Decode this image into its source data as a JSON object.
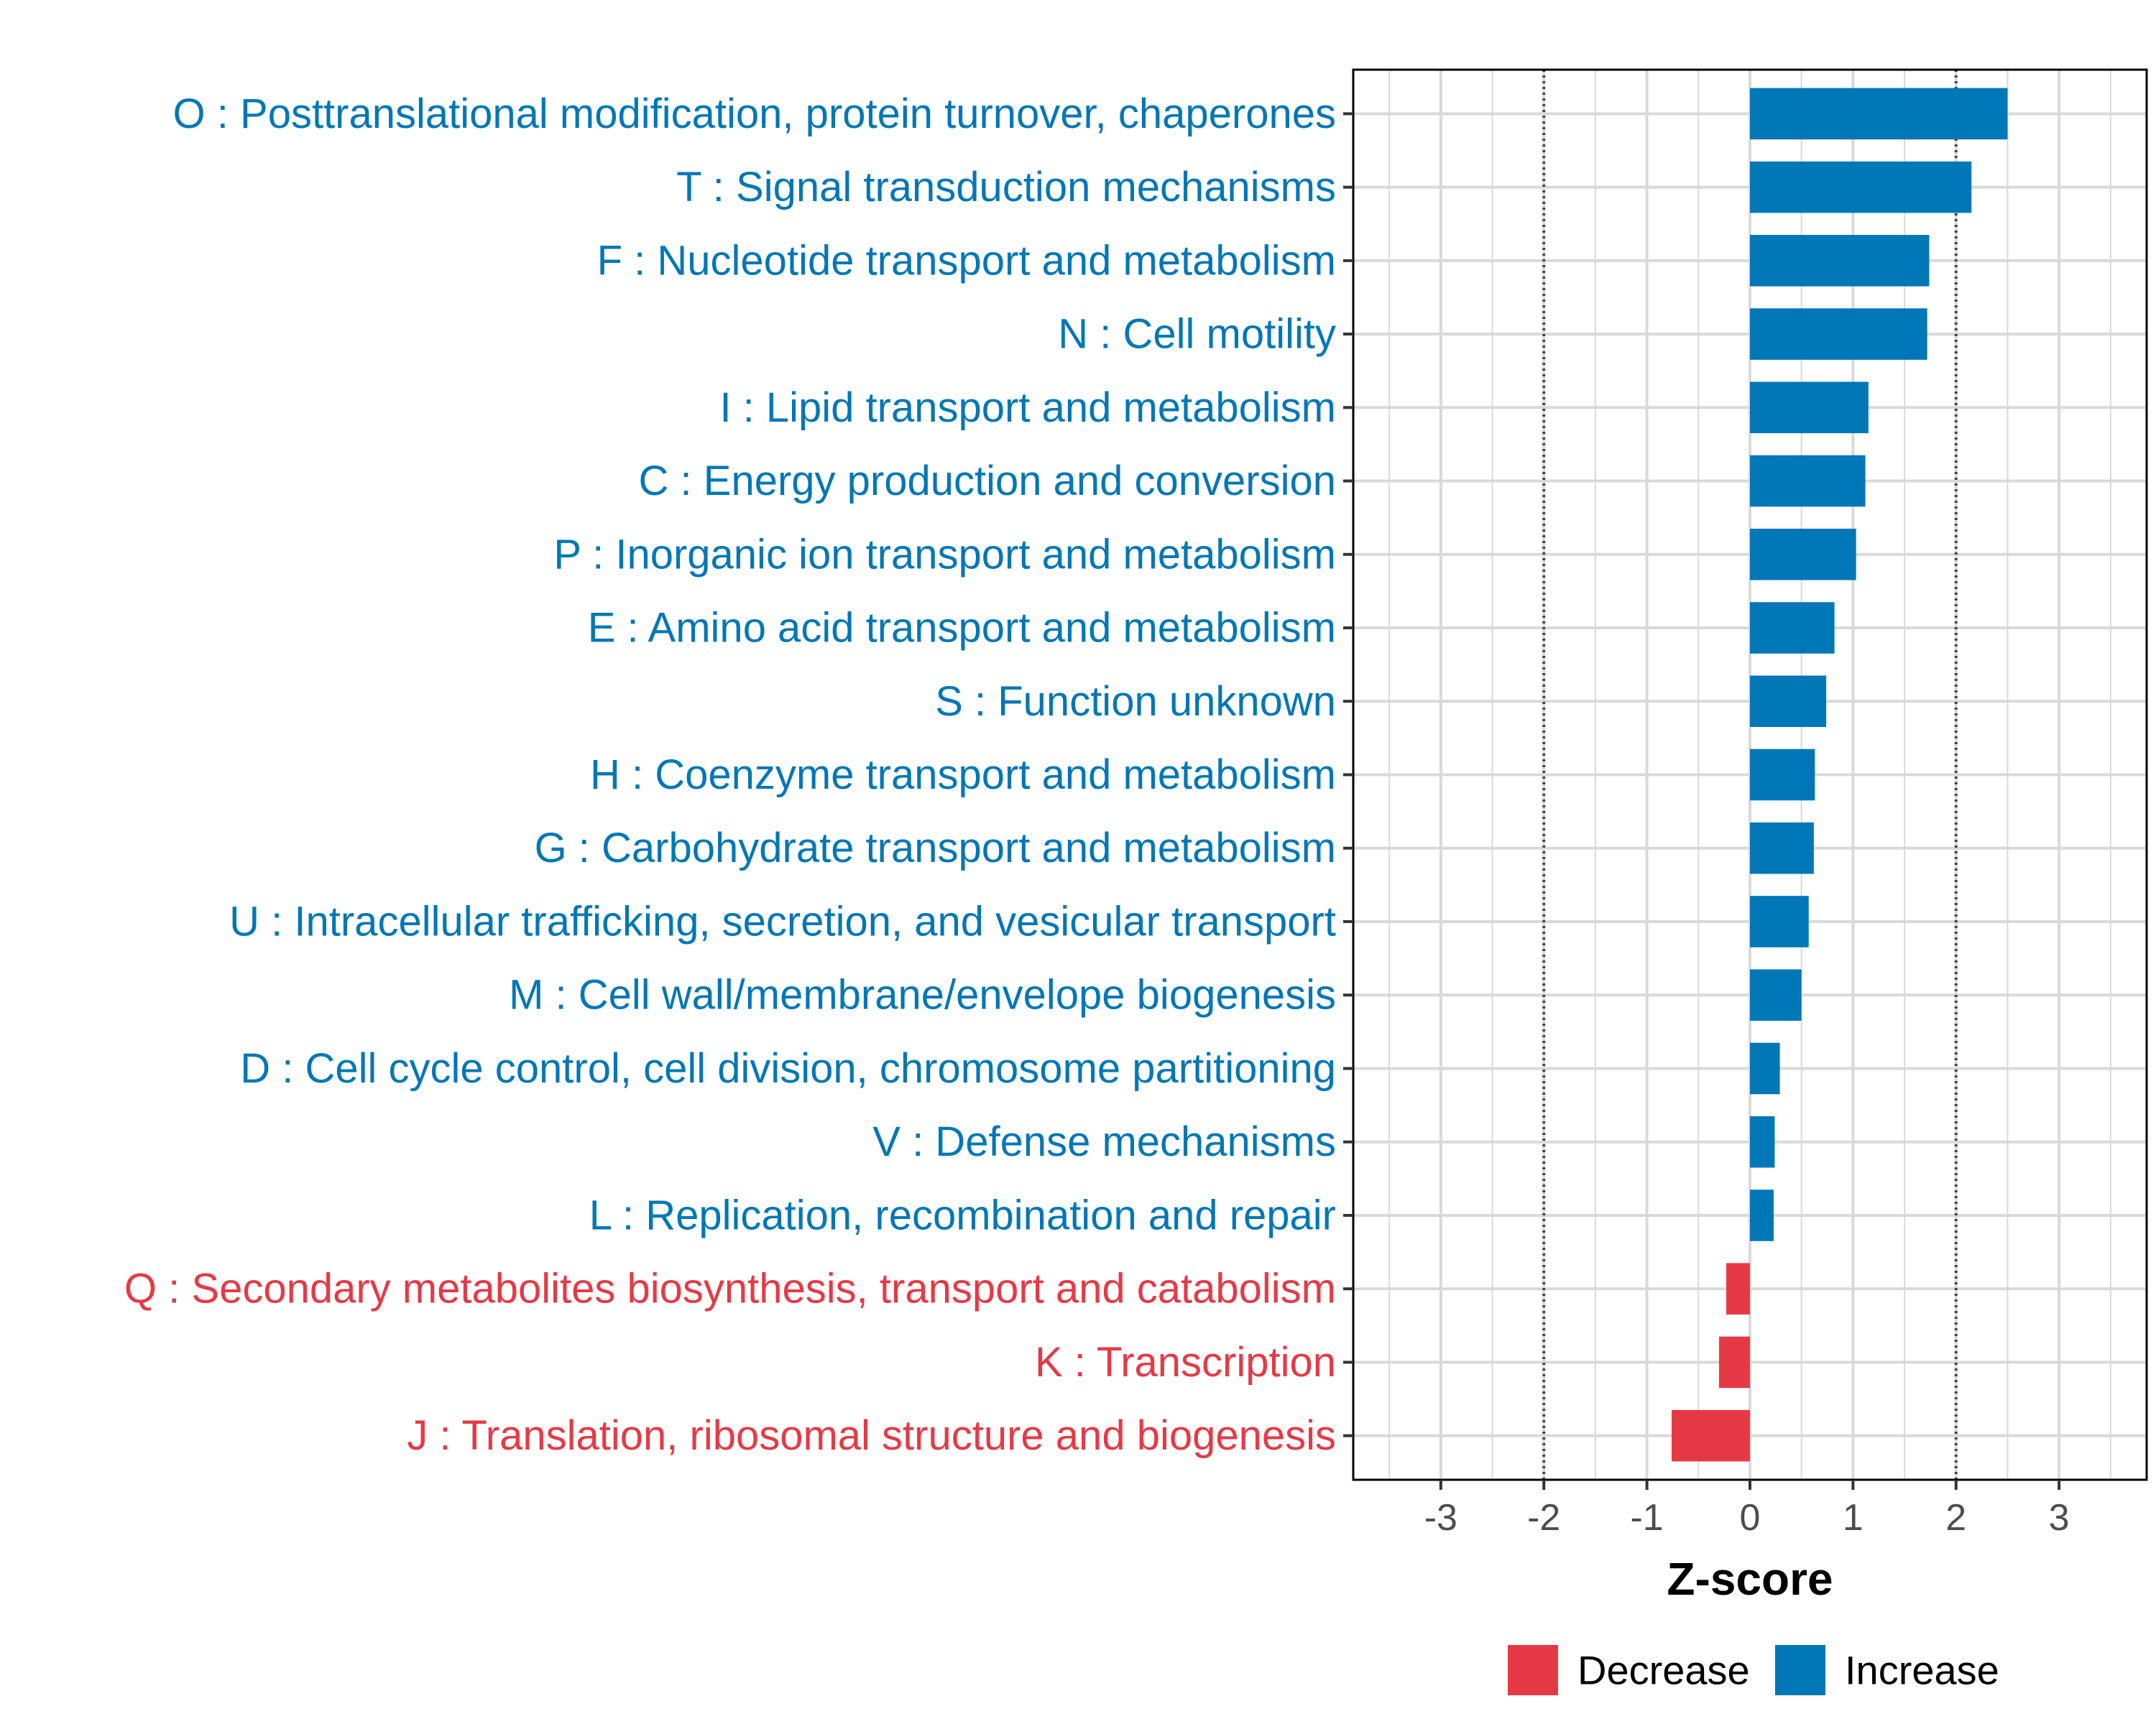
{
  "chart_data": {
    "type": "bar",
    "orientation": "horizontal",
    "xlabel": "Z-score",
    "xlim": [
      -3.85,
      3.85
    ],
    "x_ticks": [
      -3,
      -2,
      -1,
      0,
      1,
      2,
      3
    ],
    "x_tick_labels": [
      "-3",
      "-2",
      "-1",
      "0",
      "1",
      "2",
      "3"
    ],
    "reference_lines": [
      -2,
      2
    ],
    "grid": true,
    "legend_position": "bottom-right",
    "legend": [
      {
        "key": "decrease",
        "label": "Decrease",
        "color": "#E63946"
      },
      {
        "key": "increase",
        "label": "Increase",
        "color": "#0077B6"
      }
    ],
    "categories": [
      "O : Posttranslational modification, protein turnover, chaperones",
      "T : Signal transduction mechanisms",
      "F : Nucleotide transport and metabolism",
      "N : Cell motility",
      "I : Lipid transport and metabolism",
      "C : Energy production and conversion",
      "P : Inorganic ion transport and metabolism",
      "E : Amino acid transport and metabolism",
      "S : Function unknown",
      "H : Coenzyme transport and metabolism",
      "G : Carbohydrate transport and metabolism",
      "U : Intracellular trafficking, secretion, and vesicular transport",
      "M : Cell wall/membrane/envelope biogenesis",
      "D : Cell cycle control, cell division, chromosome partitioning",
      "V : Defense mechanisms",
      "L : Replication, recombination and repair",
      "Q : Secondary metabolites biosynthesis, transport and catabolism",
      "K : Transcription",
      "J : Translation, ribosomal structure and biogenesis"
    ],
    "values": [
      2.5,
      2.15,
      1.74,
      1.72,
      1.15,
      1.12,
      1.03,
      0.82,
      0.74,
      0.63,
      0.62,
      0.57,
      0.5,
      0.29,
      0.24,
      0.23,
      -0.23,
      -0.3,
      -0.76
    ]
  }
}
